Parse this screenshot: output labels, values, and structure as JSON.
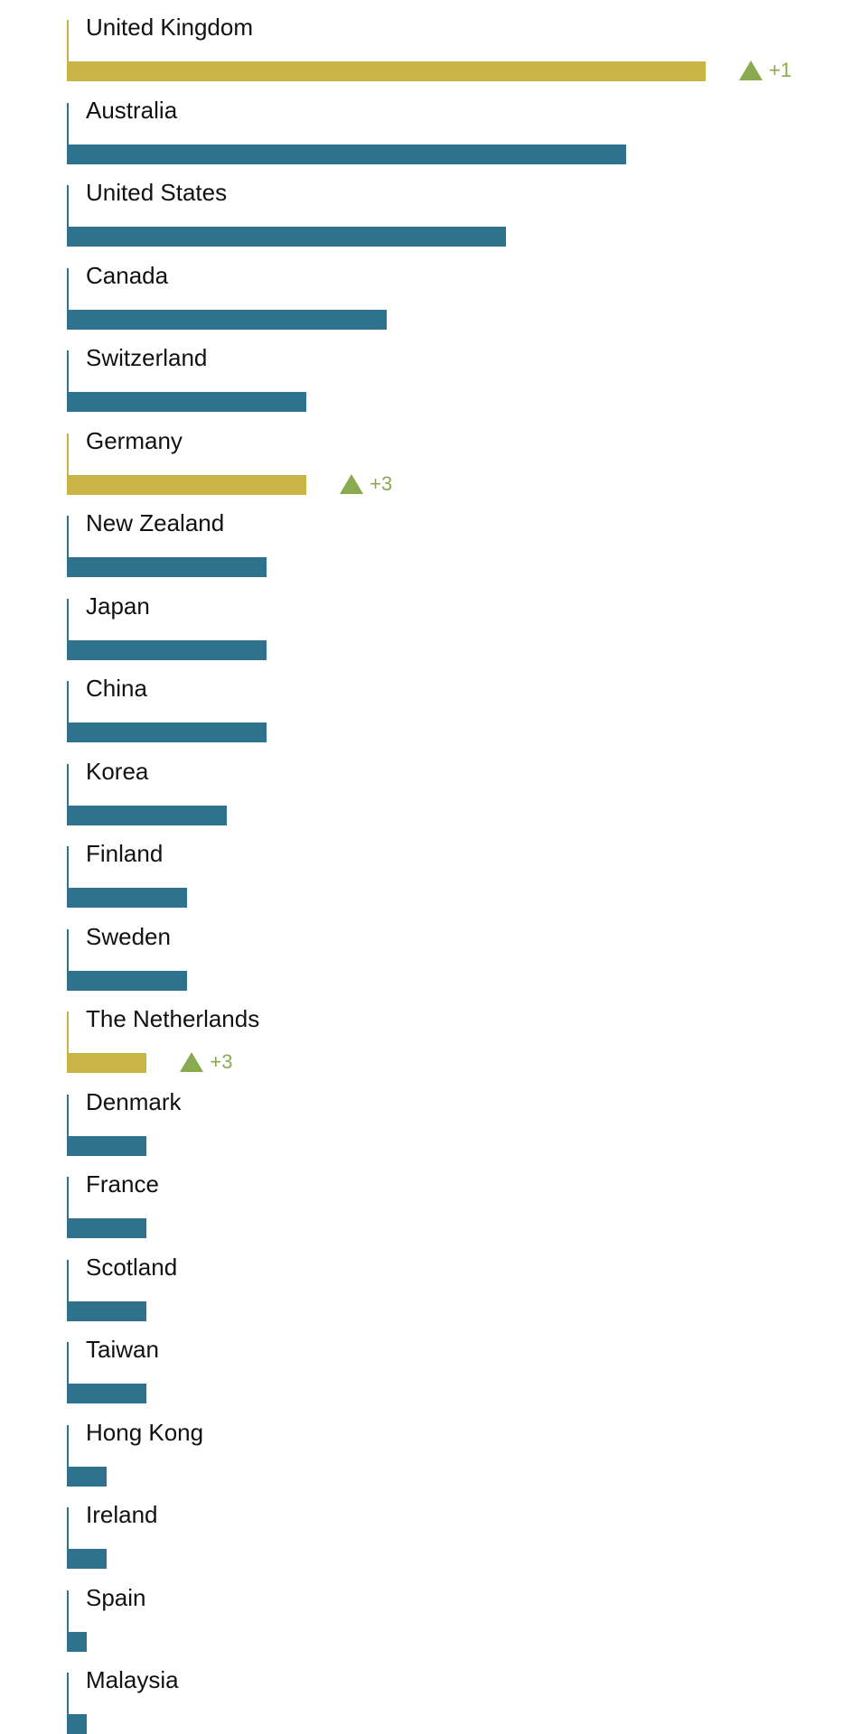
{
  "colors": {
    "bar": "#2f728e",
    "highlight_bar": "#c9b545",
    "rank_up": "#8aaa50"
  },
  "icons": {
    "rank_change": "up-triangle-icon"
  },
  "chart_data": {
    "type": "bar",
    "orientation": "horizontal",
    "categories": [
      "United Kingdom",
      "Australia",
      "United States",
      "Canada",
      "Switzerland",
      "Germany",
      "New Zealand",
      "Japan",
      "China",
      "Korea",
      "Finland",
      "Sweden",
      "The Netherlands",
      "Denmark",
      "France",
      "Scotland",
      "Taiwan",
      "Hong Kong",
      "Ireland",
      "Spain",
      "Malaysia"
    ],
    "values": [
      16,
      14,
      11,
      8,
      6,
      6,
      5,
      5,
      5,
      4,
      3,
      3,
      2,
      2,
      2,
      2,
      2,
      1,
      1,
      0.5,
      0.5
    ],
    "highlighted": [
      true,
      false,
      false,
      false,
      false,
      true,
      false,
      false,
      false,
      false,
      false,
      false,
      true,
      false,
      false,
      false,
      false,
      false,
      false,
      false,
      false
    ],
    "rank_change": [
      "+1",
      "",
      "",
      "",
      "",
      "+3",
      "",
      "",
      "",
      "",
      "",
      "",
      "+3",
      "",
      "",
      "",
      "",
      "",
      "",
      "",
      ""
    ],
    "xlim": [
      0,
      16
    ],
    "grid": false,
    "legend": "none"
  }
}
